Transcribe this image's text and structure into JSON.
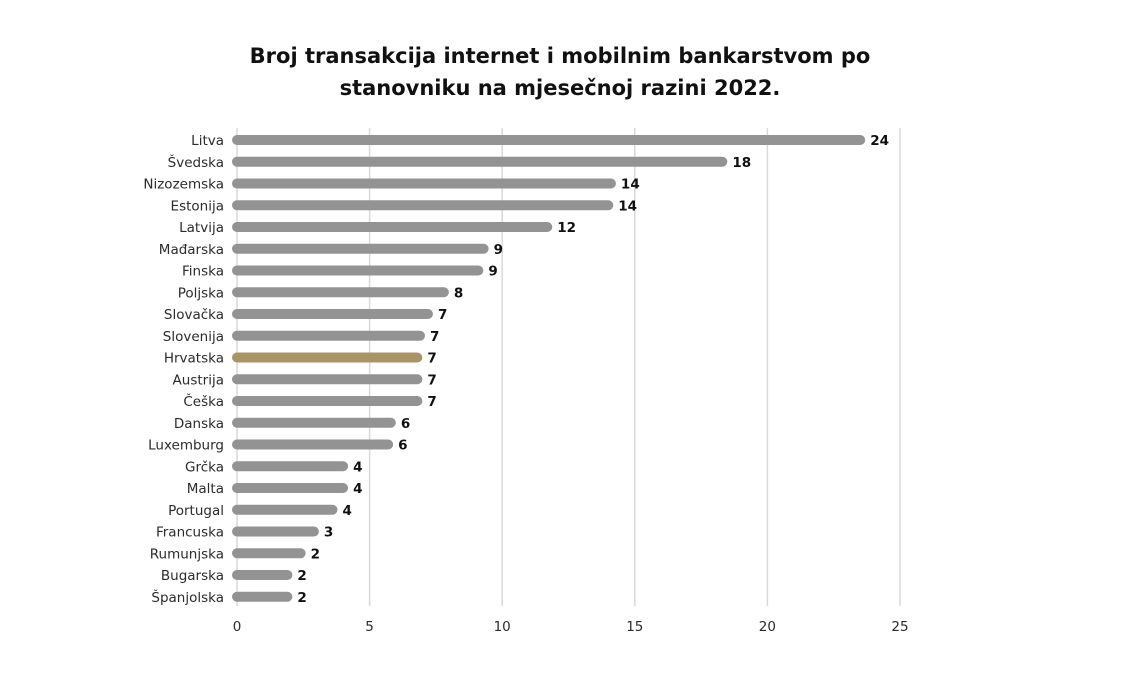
{
  "title_line1": "Broj transakcija internet i mobilnim bankarstvom po",
  "title_line2": "stanovniku na mjesečnoj razini 2022.",
  "chart_data": {
    "type": "bar",
    "orientation": "horizontal",
    "title": "Broj transakcija internet i mobilnim bankarstvom po stanovniku na mjesečnoj razini 2022.",
    "categories": [
      "Litva",
      "Švedska",
      "Nizozemska",
      "Estonija",
      "Latvija",
      "Mađarska",
      "Finska",
      "Poljska",
      "Slovačka",
      "Slovenija",
      "Hrvatska",
      "Austrija",
      "Češka",
      "Danska",
      "Luxemburg",
      "Grčka",
      "Malta",
      "Portugal",
      "Francuska",
      "Rumunjska",
      "Bugarska",
      "Španjolska"
    ],
    "values": [
      23.5,
      18.3,
      14.1,
      14.0,
      11.7,
      9.3,
      9.1,
      7.8,
      7.2,
      6.9,
      6.8,
      6.8,
      6.8,
      5.8,
      5.7,
      4.0,
      4.0,
      3.6,
      2.9,
      2.4,
      1.9,
      1.9
    ],
    "value_labels": [
      "24",
      "18",
      "14",
      "14",
      "12",
      "9",
      "9",
      "8",
      "7",
      "7",
      "7",
      "7",
      "7",
      "6",
      "6",
      "4",
      "4",
      "4",
      "3",
      "2",
      "2",
      "2"
    ],
    "xlim": [
      0,
      25
    ],
    "xticks": [
      "0",
      "5",
      "10",
      "15",
      "20",
      "25"
    ],
    "grid": "vertical",
    "colors": {
      "default": "#939393",
      "highlight": "#a89464"
    },
    "highlight_category": "Hrvatska"
  }
}
